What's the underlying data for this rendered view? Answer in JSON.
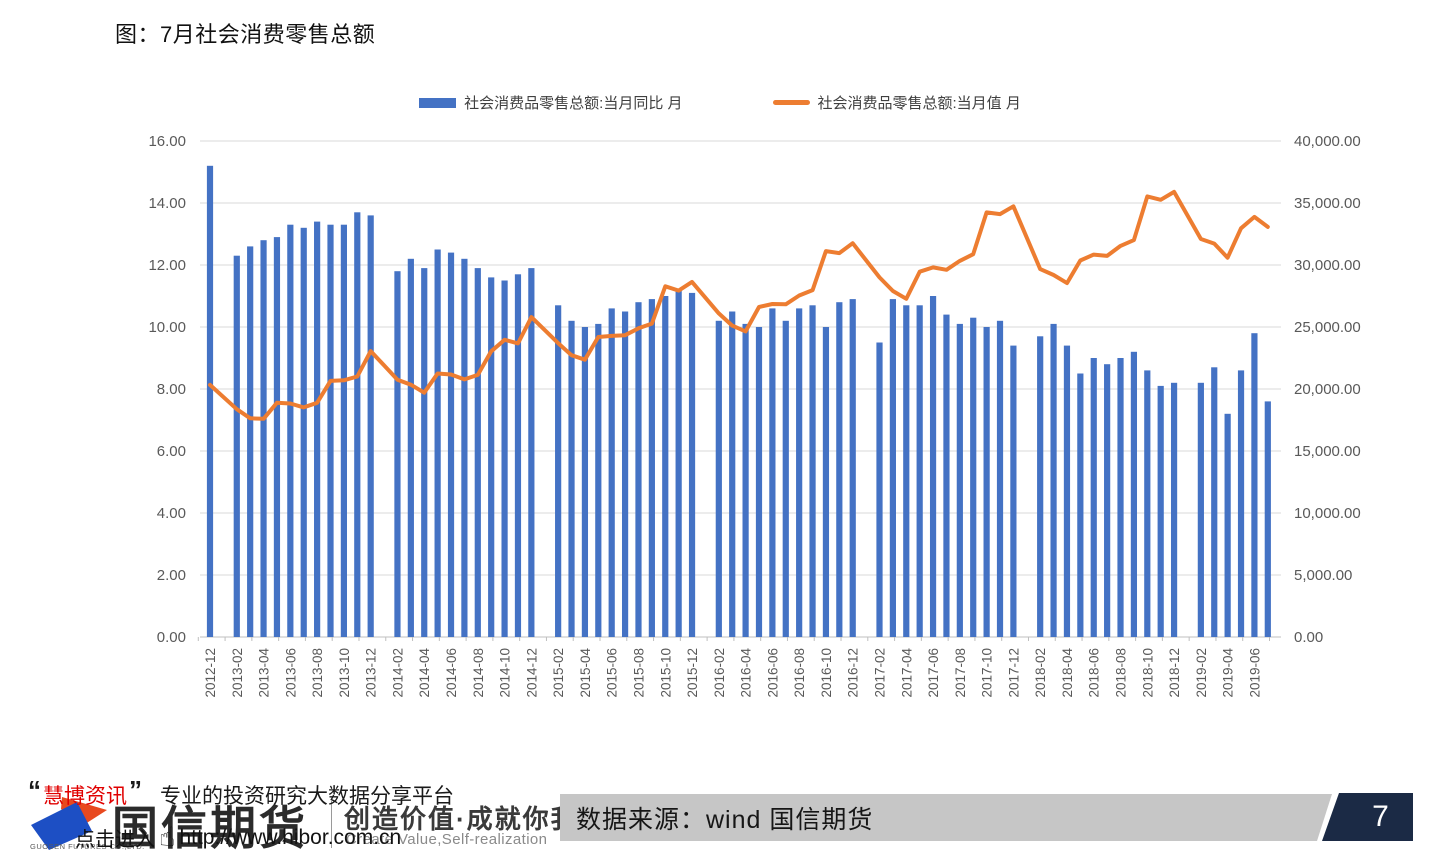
{
  "title": "图：7月社会消费零售总额",
  "legend": {
    "bar_label": "社会消费品零售总额:当月同比 月",
    "line_label": "社会消费品零售总额:当月值 月"
  },
  "colors": {
    "bar_blue": "#4472C4",
    "line_orange": "#ED7D31",
    "grid": "#D9D9D9",
    "axis_line": "#BFBFBF",
    "axis_text": "#595959",
    "footer_gray": "#C6C6C6",
    "page_navy": "#1B2A45",
    "watermark_red": "#E00000",
    "logo_blue": "#1D4FC4",
    "logo_orange": "#E8491F"
  },
  "chart_data": {
    "type": "bar+line combo",
    "x_axis": {
      "first_month": "2012-12",
      "last_month": "2019-07",
      "labels_every_n_months": 2,
      "last_label": "2019-06",
      "note": "January of each year has no data point (gap)"
    },
    "left_axis": {
      "min": 0,
      "max": 16,
      "step": 2,
      "format": "0.00",
      "series": "bar"
    },
    "right_axis": {
      "min": 0,
      "max": 40000,
      "step": 5000,
      "format": "#,##0.00",
      "series": "line"
    },
    "grid": "horizontal only",
    "legend_position": "top center",
    "months": [
      "2012-12",
      "2013-02",
      "2013-03",
      "2013-04",
      "2013-05",
      "2013-06",
      "2013-07",
      "2013-08",
      "2013-09",
      "2013-10",
      "2013-11",
      "2013-12",
      "2014-02",
      "2014-03",
      "2014-04",
      "2014-05",
      "2014-06",
      "2014-07",
      "2014-08",
      "2014-09",
      "2014-10",
      "2014-11",
      "2014-12",
      "2015-02",
      "2015-03",
      "2015-04",
      "2015-05",
      "2015-06",
      "2015-07",
      "2015-08",
      "2015-09",
      "2015-10",
      "2015-11",
      "2015-12",
      "2016-02",
      "2016-03",
      "2016-04",
      "2016-05",
      "2016-06",
      "2016-07",
      "2016-08",
      "2016-09",
      "2016-10",
      "2016-11",
      "2016-12",
      "2017-02",
      "2017-03",
      "2017-04",
      "2017-05",
      "2017-06",
      "2017-07",
      "2017-08",
      "2017-09",
      "2017-10",
      "2017-11",
      "2017-12",
      "2018-02",
      "2018-03",
      "2018-04",
      "2018-05",
      "2018-06",
      "2018-07",
      "2018-08",
      "2018-09",
      "2018-10",
      "2018-11",
      "2018-12",
      "2019-02",
      "2019-03",
      "2019-04",
      "2019-05",
      "2019-06",
      "2019-07"
    ],
    "series": [
      {
        "name": "社会消费品零售总额:当月同比 月",
        "kind": "bar",
        "axis": "left",
        "unit": "%",
        "values": [
          15.2,
          12.3,
          12.6,
          12.8,
          12.9,
          13.3,
          13.2,
          13.4,
          13.3,
          13.3,
          13.7,
          13.6,
          11.8,
          12.2,
          11.9,
          12.5,
          12.4,
          12.2,
          11.9,
          11.6,
          11.5,
          11.7,
          11.9,
          10.7,
          10.2,
          10.0,
          10.1,
          10.6,
          10.5,
          10.8,
          10.9,
          11.0,
          11.2,
          11.1,
          10.2,
          10.5,
          10.1,
          10.0,
          10.6,
          10.2,
          10.6,
          10.7,
          10.0,
          10.8,
          10.9,
          9.5,
          10.9,
          10.7,
          10.7,
          11.0,
          10.4,
          10.1,
          10.3,
          10.0,
          10.2,
          9.4,
          9.7,
          10.1,
          9.4,
          8.5,
          9.0,
          8.8,
          9.0,
          9.2,
          8.6,
          8.1,
          8.2,
          8.2,
          8.7,
          7.2,
          8.6,
          9.8,
          7.6
        ]
      },
      {
        "name": "社会消费品零售总额:当月值 月",
        "kind": "line",
        "axis": "right",
        "unit": "亿元",
        "values": [
          20334,
          18370,
          17641,
          17600,
          18886,
          18827,
          18513,
          18886,
          20653,
          20702,
          21012,
          23060,
          20750,
          20350,
          19701,
          21250,
          21166,
          20776,
          21134,
          23042,
          23967,
          23675,
          25801,
          23700,
          22723,
          22359,
          24195,
          24280,
          24339,
          24893,
          25271,
          28279,
          27938,
          28635,
          26100,
          25114,
          24646,
          26611,
          26857,
          26827,
          27540,
          27976,
          31119,
          30959,
          31757,
          29000,
          27900,
          27278,
          29459,
          29808,
          29610,
          30330,
          30870,
          34241,
          34108,
          34734,
          29671,
          29194,
          28542,
          30359,
          30842,
          30734,
          31542,
          32005,
          35534,
          35260,
          35893,
          32100,
          31726,
          30586,
          32956,
          33878,
          33073
        ]
      }
    ]
  },
  "footer": {
    "source": "数据来源：wind 国信期货",
    "page": "7"
  },
  "branding": {
    "watermark": {
      "quote_open": "“",
      "brand": "慧博资讯",
      "quote_close": "”",
      "tagline": "专业的投资研究大数据分享平台",
      "click_text": "点击进入",
      "hand_icon": "☝",
      "url": "http://www.hibor.com.cn"
    },
    "logo": {
      "name": "国信期货",
      "sub": "GUOSEN FUTURES CO.,LTD.",
      "slogan_cn": "创造价值·成就你我",
      "slogan_en": "Create Value,Self-realization"
    }
  }
}
